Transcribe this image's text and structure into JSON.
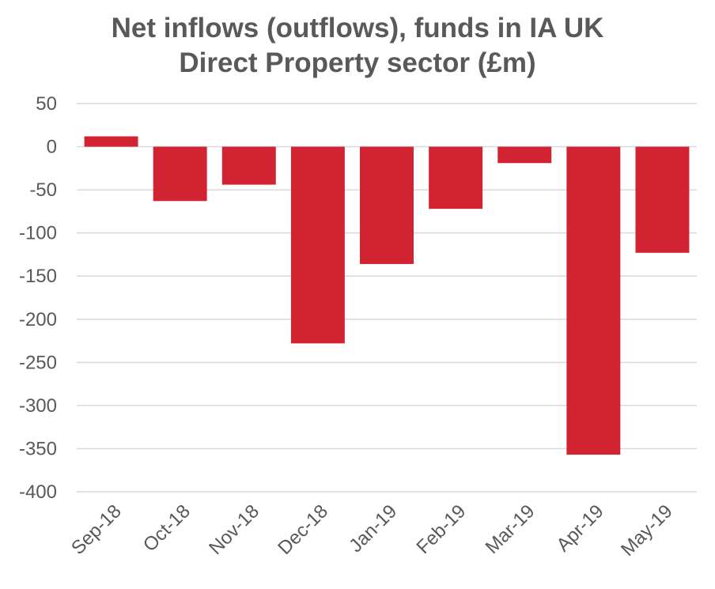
{
  "title_lines": [
    "Net inflows (outflows), funds in IA UK",
    "Direct Property sector (£m)"
  ],
  "colors": {
    "bar": "#d12331",
    "grid": "#d9d9d9",
    "text": "#595959",
    "background": "#ffffff"
  },
  "chart_data": {
    "type": "bar",
    "title": "Net inflows (outflows), funds in IA UK Direct Property sector (£m)",
    "xlabel": "",
    "ylabel": "",
    "categories": [
      "Sep-18",
      "Oct-18",
      "Nov-18",
      "Dec-18",
      "Jan-19",
      "Feb-19",
      "Mar-19",
      "Apr-19",
      "May-19"
    ],
    "values": [
      12,
      -63,
      -44,
      -228,
      -136,
      -72,
      -19,
      -357,
      -123
    ],
    "ylim": [
      -400,
      50
    ],
    "yticks": [
      50,
      0,
      -50,
      -100,
      -150,
      -200,
      -250,
      -300,
      -350,
      -400
    ],
    "grid": true,
    "legend": "none"
  }
}
